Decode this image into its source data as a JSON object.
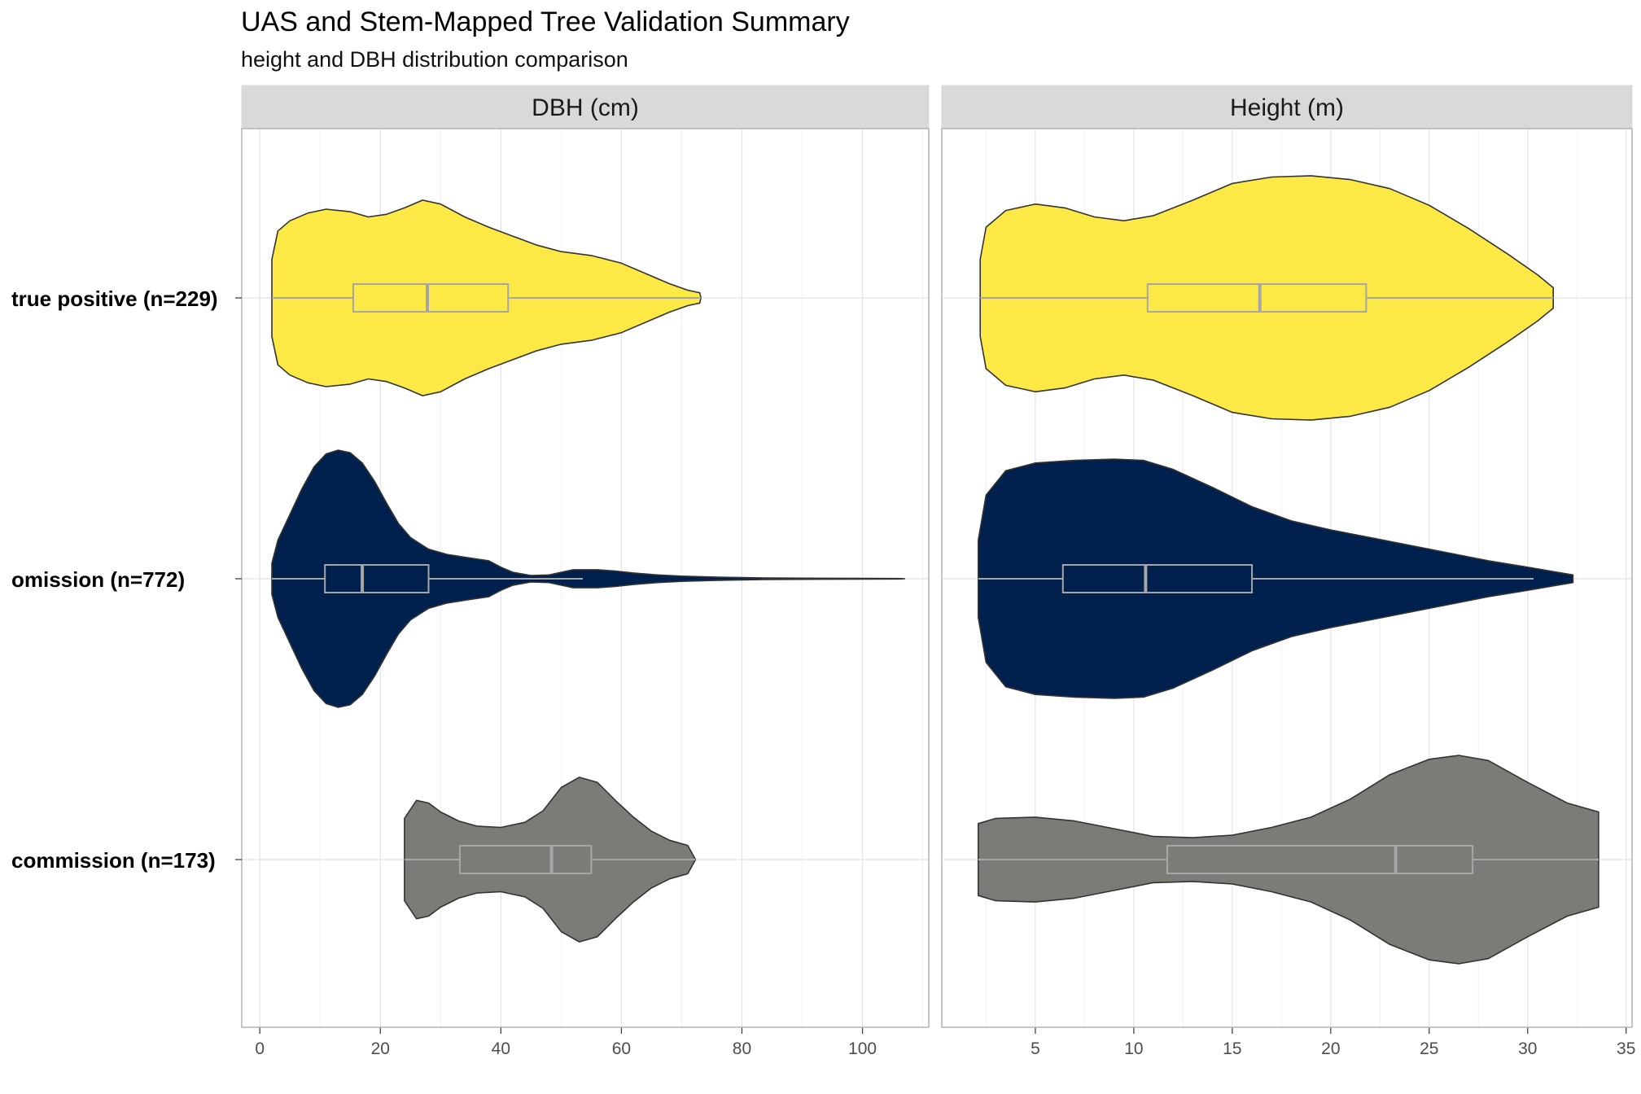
{
  "chart_data": {
    "type": "violin",
    "title": "UAS and Stem-Mapped Tree Validation Summary",
    "subtitle": "height and DBH distribution comparison",
    "categories": [
      "true positive (n=229)",
      "omission (n=772)",
      "commission (n=173)"
    ],
    "colors": {
      "true positive (n=229)": "#FDE945",
      "omission (n=772)": "#00204D",
      "commission (n=173)": "#7C7B78"
    },
    "grid": true,
    "legend": "none",
    "panels": [
      {
        "strip_label": "DBH (cm)",
        "xlim": [
          -3,
          111
        ],
        "x_ticks": [
          0,
          20,
          40,
          60,
          80,
          100
        ],
        "groups": [
          {
            "category": "true positive (n=229)",
            "density": [
              [
                2,
                0.3
              ],
              [
                3,
                0.52
              ],
              [
                5,
                0.6
              ],
              [
                8,
                0.66
              ],
              [
                11,
                0.69
              ],
              [
                15,
                0.67
              ],
              [
                18,
                0.63
              ],
              [
                21,
                0.65
              ],
              [
                24,
                0.7
              ],
              [
                27,
                0.76
              ],
              [
                30,
                0.73
              ],
              [
                34,
                0.63
              ],
              [
                38,
                0.55
              ],
              [
                42,
                0.48
              ],
              [
                46,
                0.41
              ],
              [
                50,
                0.36
              ],
              [
                55,
                0.33
              ],
              [
                60,
                0.27
              ],
              [
                64,
                0.19
              ],
              [
                68,
                0.11
              ],
              [
                71,
                0.06
              ],
              [
                73,
                0.04
              ],
              [
                73.2,
                0
              ]
            ],
            "box": {
              "whisker_low": 2,
              "q1": 15.5,
              "median": 27.8,
              "q3": 41.2,
              "whisker_high": 73.2
            }
          },
          {
            "category": "omission (n=772)",
            "density": [
              [
                2,
                0.12
              ],
              [
                3,
                0.3
              ],
              [
                5,
                0.5
              ],
              [
                7,
                0.7
              ],
              [
                9,
                0.87
              ],
              [
                11,
                0.97
              ],
              [
                13,
                1.0
              ],
              [
                15,
                0.98
              ],
              [
                17,
                0.9
              ],
              [
                19,
                0.76
              ],
              [
                21,
                0.59
              ],
              [
                23,
                0.43
              ],
              [
                25,
                0.32
              ],
              [
                28,
                0.23
              ],
              [
                31,
                0.19
              ],
              [
                35,
                0.16
              ],
              [
                38,
                0.14
              ],
              [
                40,
                0.09
              ],
              [
                42,
                0.05
              ],
              [
                45,
                0.025
              ],
              [
                48,
                0.03
              ],
              [
                52,
                0.07
              ],
              [
                56,
                0.07
              ],
              [
                59,
                0.06
              ],
              [
                62,
                0.045
              ],
              [
                66,
                0.03
              ],
              [
                70,
                0.02
              ],
              [
                76,
                0.012
              ],
              [
                84,
                0.006
              ],
              [
                95,
                0.004
              ],
              [
                106,
                0.002
              ],
              [
                107,
                0
              ]
            ],
            "box": {
              "whisker_low": 2,
              "q1": 10.8,
              "median": 17,
              "q3": 28,
              "whisker_high": 53.6
            }
          },
          {
            "category": "commission (n=173)",
            "density": [
              [
                24,
                0.32
              ],
              [
                26,
                0.46
              ],
              [
                28,
                0.44
              ],
              [
                30,
                0.37
              ],
              [
                33,
                0.3
              ],
              [
                36,
                0.26
              ],
              [
                40,
                0.25
              ],
              [
                44,
                0.29
              ],
              [
                47,
                0.38
              ],
              [
                50,
                0.56
              ],
              [
                53,
                0.64
              ],
              [
                56,
                0.6
              ],
              [
                59,
                0.46
              ],
              [
                62,
                0.33
              ],
              [
                65,
                0.22
              ],
              [
                68,
                0.15
              ],
              [
                71,
                0.11
              ],
              [
                72.3,
                0
              ]
            ],
            "box": {
              "whisker_low": 24,
              "q1": 33.2,
              "median": 48.4,
              "q3": 55,
              "whisker_high": 72.3
            }
          }
        ]
      },
      {
        "strip_label": "Height (m)",
        "xlim": [
          0.25,
          35.3
        ],
        "x_ticks": [
          5,
          10,
          15,
          20,
          25,
          30,
          35
        ],
        "groups": [
          {
            "category": "true positive (n=229)",
            "density": [
              [
                2.2,
                0.3
              ],
              [
                2.5,
                0.55
              ],
              [
                3.5,
                0.68
              ],
              [
                5,
                0.73
              ],
              [
                6.5,
                0.7
              ],
              [
                8,
                0.63
              ],
              [
                9.5,
                0.6
              ],
              [
                11,
                0.64
              ],
              [
                13,
                0.76
              ],
              [
                15,
                0.89
              ],
              [
                17,
                0.94
              ],
              [
                19,
                0.95
              ],
              [
                21,
                0.92
              ],
              [
                23,
                0.85
              ],
              [
                25,
                0.72
              ],
              [
                27,
                0.54
              ],
              [
                29,
                0.34
              ],
              [
                30.5,
                0.18
              ],
              [
                31.3,
                0.08
              ],
              [
                31.3,
                0
              ]
            ],
            "box": {
              "whisker_low": 2.2,
              "q1": 10.7,
              "median": 16.4,
              "q3": 21.8,
              "whisker_high": 31.3
            }
          },
          {
            "category": "omission (n=772)",
            "density": [
              [
                2.1,
                0.3
              ],
              [
                2.5,
                0.65
              ],
              [
                3.5,
                0.84
              ],
              [
                5,
                0.9
              ],
              [
                7,
                0.92
              ],
              [
                9,
                0.93
              ],
              [
                10.5,
                0.92
              ],
              [
                12,
                0.85
              ],
              [
                14,
                0.71
              ],
              [
                16,
                0.56
              ],
              [
                18,
                0.45
              ],
              [
                20,
                0.38
              ],
              [
                22,
                0.32
              ],
              [
                24,
                0.26
              ],
              [
                26,
                0.2
              ],
              [
                28,
                0.14
              ],
              [
                30,
                0.09
              ],
              [
                31.5,
                0.05
              ],
              [
                32.3,
                0.03
              ],
              [
                32.3,
                0
              ]
            ],
            "box": {
              "whisker_low": 2.1,
              "q1": 6.4,
              "median": 10.6,
              "q3": 16,
              "whisker_high": 30.3
            }
          },
          {
            "category": "commission (n=173)",
            "density": [
              [
                2.1,
                0.28
              ],
              [
                3,
                0.32
              ],
              [
                5,
                0.33
              ],
              [
                7,
                0.3
              ],
              [
                9,
                0.24
              ],
              [
                11,
                0.18
              ],
              [
                13,
                0.17
              ],
              [
                15,
                0.19
              ],
              [
                17,
                0.25
              ],
              [
                19,
                0.33
              ],
              [
                21,
                0.47
              ],
              [
                23,
                0.66
              ],
              [
                25,
                0.78
              ],
              [
                26.5,
                0.81
              ],
              [
                28,
                0.77
              ],
              [
                30,
                0.6
              ],
              [
                32,
                0.44
              ],
              [
                33.6,
                0.37
              ],
              [
                33.6,
                0
              ]
            ],
            "box": {
              "whisker_low": 2.1,
              "q1": 11.7,
              "median": 23.3,
              "q3": 27.2,
              "whisker_high": 33.6
            }
          }
        ]
      }
    ]
  }
}
